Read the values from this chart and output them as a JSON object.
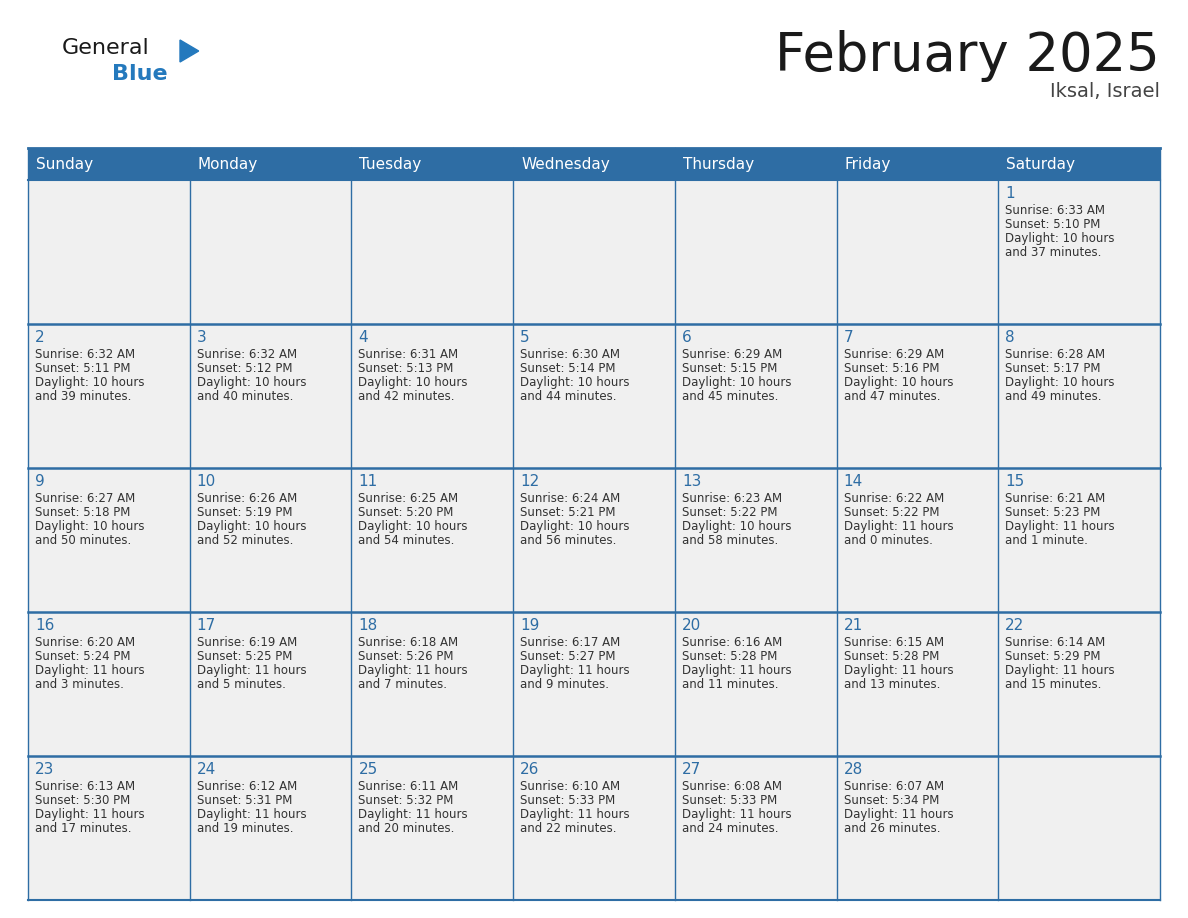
{
  "title": "February 2025",
  "subtitle": "Iksal, Israel",
  "header_bg": "#2E6DA4",
  "header_text_color": "#FFFFFF",
  "cell_bg": "#F0F0F0",
  "white_bg": "#FFFFFF",
  "border_color": "#2E6DA4",
  "border_light": "#CCCCCC",
  "title_color": "#1a1a1a",
  "subtitle_color": "#444444",
  "day_number_color": "#2E6DA4",
  "cell_text_color": "#333333",
  "days_of_week": [
    "Sunday",
    "Monday",
    "Tuesday",
    "Wednesday",
    "Thursday",
    "Friday",
    "Saturday"
  ],
  "weeks": [
    [
      {
        "day": null,
        "sunrise": null,
        "sunset": null,
        "daylight_line1": null,
        "daylight_line2": null
      },
      {
        "day": null,
        "sunrise": null,
        "sunset": null,
        "daylight_line1": null,
        "daylight_line2": null
      },
      {
        "day": null,
        "sunrise": null,
        "sunset": null,
        "daylight_line1": null,
        "daylight_line2": null
      },
      {
        "day": null,
        "sunrise": null,
        "sunset": null,
        "daylight_line1": null,
        "daylight_line2": null
      },
      {
        "day": null,
        "sunrise": null,
        "sunset": null,
        "daylight_line1": null,
        "daylight_line2": null
      },
      {
        "day": null,
        "sunrise": null,
        "sunset": null,
        "daylight_line1": null,
        "daylight_line2": null
      },
      {
        "day": 1,
        "sunrise": "6:33 AM",
        "sunset": "5:10 PM",
        "daylight_line1": "Daylight: 10 hours",
        "daylight_line2": "and 37 minutes."
      }
    ],
    [
      {
        "day": 2,
        "sunrise": "6:32 AM",
        "sunset": "5:11 PM",
        "daylight_line1": "Daylight: 10 hours",
        "daylight_line2": "and 39 minutes."
      },
      {
        "day": 3,
        "sunrise": "6:32 AM",
        "sunset": "5:12 PM",
        "daylight_line1": "Daylight: 10 hours",
        "daylight_line2": "and 40 minutes."
      },
      {
        "day": 4,
        "sunrise": "6:31 AM",
        "sunset": "5:13 PM",
        "daylight_line1": "Daylight: 10 hours",
        "daylight_line2": "and 42 minutes."
      },
      {
        "day": 5,
        "sunrise": "6:30 AM",
        "sunset": "5:14 PM",
        "daylight_line1": "Daylight: 10 hours",
        "daylight_line2": "and 44 minutes."
      },
      {
        "day": 6,
        "sunrise": "6:29 AM",
        "sunset": "5:15 PM",
        "daylight_line1": "Daylight: 10 hours",
        "daylight_line2": "and 45 minutes."
      },
      {
        "day": 7,
        "sunrise": "6:29 AM",
        "sunset": "5:16 PM",
        "daylight_line1": "Daylight: 10 hours",
        "daylight_line2": "and 47 minutes."
      },
      {
        "day": 8,
        "sunrise": "6:28 AM",
        "sunset": "5:17 PM",
        "daylight_line1": "Daylight: 10 hours",
        "daylight_line2": "and 49 minutes."
      }
    ],
    [
      {
        "day": 9,
        "sunrise": "6:27 AM",
        "sunset": "5:18 PM",
        "daylight_line1": "Daylight: 10 hours",
        "daylight_line2": "and 50 minutes."
      },
      {
        "day": 10,
        "sunrise": "6:26 AM",
        "sunset": "5:19 PM",
        "daylight_line1": "Daylight: 10 hours",
        "daylight_line2": "and 52 minutes."
      },
      {
        "day": 11,
        "sunrise": "6:25 AM",
        "sunset": "5:20 PM",
        "daylight_line1": "Daylight: 10 hours",
        "daylight_line2": "and 54 minutes."
      },
      {
        "day": 12,
        "sunrise": "6:24 AM",
        "sunset": "5:21 PM",
        "daylight_line1": "Daylight: 10 hours",
        "daylight_line2": "and 56 minutes."
      },
      {
        "day": 13,
        "sunrise": "6:23 AM",
        "sunset": "5:22 PM",
        "daylight_line1": "Daylight: 10 hours",
        "daylight_line2": "and 58 minutes."
      },
      {
        "day": 14,
        "sunrise": "6:22 AM",
        "sunset": "5:22 PM",
        "daylight_line1": "Daylight: 11 hours",
        "daylight_line2": "and 0 minutes."
      },
      {
        "day": 15,
        "sunrise": "6:21 AM",
        "sunset": "5:23 PM",
        "daylight_line1": "Daylight: 11 hours",
        "daylight_line2": "and 1 minute."
      }
    ],
    [
      {
        "day": 16,
        "sunrise": "6:20 AM",
        "sunset": "5:24 PM",
        "daylight_line1": "Daylight: 11 hours",
        "daylight_line2": "and 3 minutes."
      },
      {
        "day": 17,
        "sunrise": "6:19 AM",
        "sunset": "5:25 PM",
        "daylight_line1": "Daylight: 11 hours",
        "daylight_line2": "and 5 minutes."
      },
      {
        "day": 18,
        "sunrise": "6:18 AM",
        "sunset": "5:26 PM",
        "daylight_line1": "Daylight: 11 hours",
        "daylight_line2": "and 7 minutes."
      },
      {
        "day": 19,
        "sunrise": "6:17 AM",
        "sunset": "5:27 PM",
        "daylight_line1": "Daylight: 11 hours",
        "daylight_line2": "and 9 minutes."
      },
      {
        "day": 20,
        "sunrise": "6:16 AM",
        "sunset": "5:28 PM",
        "daylight_line1": "Daylight: 11 hours",
        "daylight_line2": "and 11 minutes."
      },
      {
        "day": 21,
        "sunrise": "6:15 AM",
        "sunset": "5:28 PM",
        "daylight_line1": "Daylight: 11 hours",
        "daylight_line2": "and 13 minutes."
      },
      {
        "day": 22,
        "sunrise": "6:14 AM",
        "sunset": "5:29 PM",
        "daylight_line1": "Daylight: 11 hours",
        "daylight_line2": "and 15 minutes."
      }
    ],
    [
      {
        "day": 23,
        "sunrise": "6:13 AM",
        "sunset": "5:30 PM",
        "daylight_line1": "Daylight: 11 hours",
        "daylight_line2": "and 17 minutes."
      },
      {
        "day": 24,
        "sunrise": "6:12 AM",
        "sunset": "5:31 PM",
        "daylight_line1": "Daylight: 11 hours",
        "daylight_line2": "and 19 minutes."
      },
      {
        "day": 25,
        "sunrise": "6:11 AM",
        "sunset": "5:32 PM",
        "daylight_line1": "Daylight: 11 hours",
        "daylight_line2": "and 20 minutes."
      },
      {
        "day": 26,
        "sunrise": "6:10 AM",
        "sunset": "5:33 PM",
        "daylight_line1": "Daylight: 11 hours",
        "daylight_line2": "and 22 minutes."
      },
      {
        "day": 27,
        "sunrise": "6:08 AM",
        "sunset": "5:33 PM",
        "daylight_line1": "Daylight: 11 hours",
        "daylight_line2": "and 24 minutes."
      },
      {
        "day": 28,
        "sunrise": "6:07 AM",
        "sunset": "5:34 PM",
        "daylight_line1": "Daylight: 11 hours",
        "daylight_line2": "and 26 minutes."
      },
      {
        "day": null,
        "sunrise": null,
        "sunset": null,
        "daylight_line1": null,
        "daylight_line2": null
      }
    ]
  ],
  "logo_general_color": "#1a1a1a",
  "logo_blue_color": "#2479BD",
  "fig_width": 11.88,
  "fig_height": 9.18
}
